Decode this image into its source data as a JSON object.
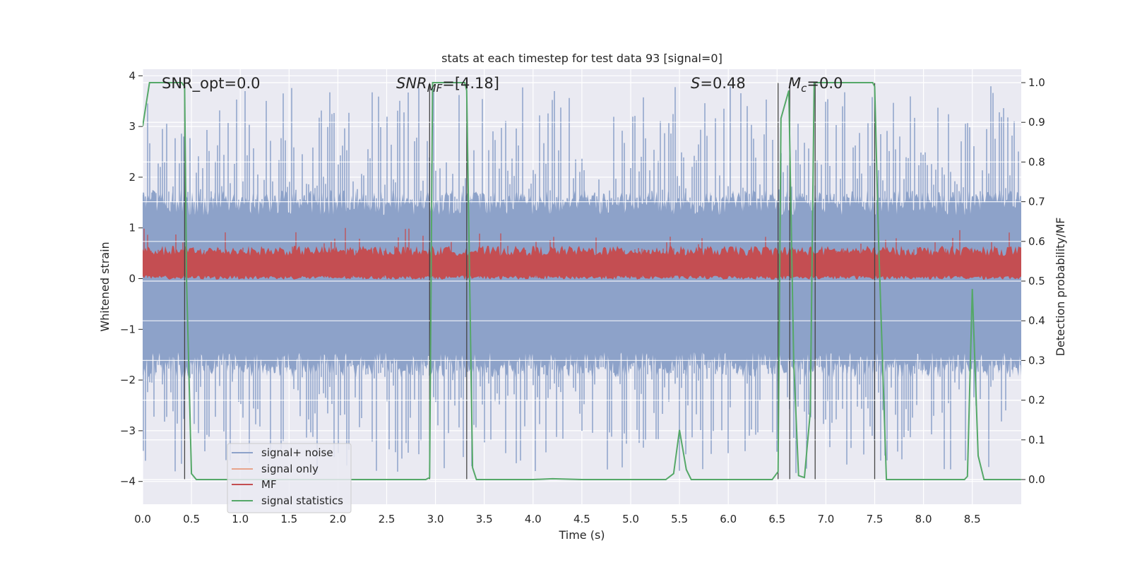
{
  "chart_data": {
    "type": "line",
    "title": "stats at each timestep for test data 93 [signal=0]",
    "xlabel": "Time (s)",
    "ylabel_left": "Whitened strain",
    "ylabel_right": "Detection probability/MF",
    "xlim": [
      0,
      9
    ],
    "ylim_left": [
      -4.4,
      4.2
    ],
    "ylim_right": [
      -0.05,
      1.03
    ],
    "x_ticks": [
      "0.0",
      "0.5",
      "1.0",
      "1.5",
      "2.0",
      "2.5",
      "3.0",
      "3.5",
      "4.0",
      "4.5",
      "5.0",
      "5.5",
      "6.0",
      "6.5",
      "7.0",
      "7.5",
      "8.0",
      "8.5"
    ],
    "y_ticks_left": [
      "4",
      "3",
      "2",
      "1",
      "0",
      "−1",
      "−2",
      "−3",
      "−4"
    ],
    "y_ticks_right": [
      "1.0",
      "0.9",
      "0.8",
      "0.7",
      "0.6",
      "0.5",
      "0.4",
      "0.3",
      "0.2",
      "0.1",
      "0.0"
    ],
    "grid": true,
    "legend_placement": "lower-left",
    "annotations": {
      "snr_opt": "SNR_opt=0.0",
      "snr_mf": "SNR",
      "snr_mf_sub": "MF",
      "snr_mf_val": "=[4.18]",
      "s_label": "S",
      "s_val": "=0.48",
      "m_label": "M",
      "m_sub": "c",
      "m_val": "=0.0"
    },
    "series": [
      {
        "name": "signal+ noise",
        "color": "#8da2c9",
        "note": "noise band",
        "values_summary": {
          "typical_range": [
            -1.7,
            1.5
          ],
          "extreme_range": [
            -3.9,
            3.8
          ]
        }
      },
      {
        "name": "signal only",
        "color": "#e8a48b",
        "values": []
      },
      {
        "name": "MF",
        "color": "#c44e52",
        "values_summary": {
          "typical_range": [
            0.02,
            0.55
          ],
          "peak": 1.0
        }
      },
      {
        "name": "signal statistics",
        "color": "#55a868",
        "x": [
          0,
          0.07,
          0.2,
          0.3,
          0.4,
          0.43,
          0.45,
          0.5,
          0.55,
          0.6,
          1.0,
          2.0,
          2.5,
          2.9,
          2.94,
          2.97,
          3.0,
          3.05,
          3.3,
          3.32,
          3.38,
          3.42,
          3.48,
          4.0,
          4.2,
          4.5,
          5.0,
          5.36,
          5.44,
          5.5,
          5.57,
          5.62,
          6.0,
          6.45,
          6.51,
          6.54,
          6.62,
          6.67,
          6.72,
          6.78,
          6.84,
          6.88,
          6.93,
          7.0,
          7.48,
          7.5,
          7.54,
          7.62,
          8.0,
          8.42,
          8.45,
          8.5,
          8.56,
          8.62,
          9.0
        ],
        "y": [
          0.89,
          1.0,
          1.0,
          1.0,
          1.0,
          0.99,
          0.5,
          0.015,
          0.0,
          0.0,
          0.0,
          0.0,
          0.0,
          0.0,
          0.005,
          1.0,
          1.0,
          1.0,
          1.0,
          0.98,
          0.03,
          0.0,
          0.0,
          0.0,
          0.002,
          0.0,
          0.0,
          0.0,
          0.015,
          0.125,
          0.025,
          0.0,
          0.0,
          0.0,
          0.02,
          0.91,
          0.98,
          0.3,
          0.01,
          0.005,
          0.17,
          1.0,
          1.0,
          1.0,
          1.0,
          0.99,
          0.6,
          0.0,
          0.0,
          0.0,
          0.008,
          0.48,
          0.06,
          0.0,
          0.0
        ]
      }
    ],
    "vertical_markers_x": [
      0.43,
      2.94,
      3.32,
      6.51,
      6.63,
      6.89,
      7.5
    ]
  }
}
